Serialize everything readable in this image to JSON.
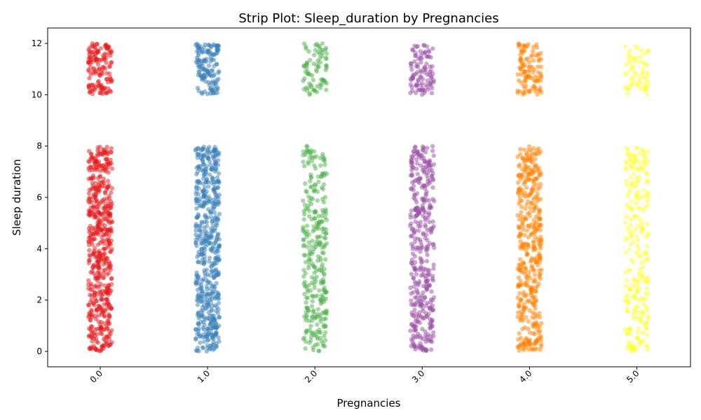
{
  "chart_data": {
    "type": "scatter",
    "subtype": "strip",
    "title": "Strip Plot: Sleep_duration by Pregnancies",
    "xlabel": "Pregnancies",
    "ylabel": "Sleep duration",
    "categories": [
      "0.0",
      "1.0",
      "2.0",
      "3.0",
      "4.0",
      "5.0"
    ],
    "ylim": [
      -0.6,
      12.6
    ],
    "yticks": [
      0,
      2,
      4,
      6,
      8,
      10,
      12
    ],
    "grid": false,
    "legend": "none",
    "point_alpha": 0.5,
    "series": [
      {
        "category": "0.0",
        "color": "#e41a1c",
        "density": 1.0,
        "ranges": [
          {
            "min": 0,
            "max": 8
          },
          {
            "min": 10,
            "max": 12
          }
        ]
      },
      {
        "category": "1.0",
        "color": "#377eb8",
        "density": 0.95,
        "ranges": [
          {
            "min": 0,
            "max": 8
          },
          {
            "min": 10,
            "max": 12
          }
        ]
      },
      {
        "category": "2.0",
        "color": "#4daf4a",
        "density": 0.55,
        "ranges": [
          {
            "min": 0,
            "max": 8
          },
          {
            "min": 10,
            "max": 12
          }
        ]
      },
      {
        "category": "3.0",
        "color": "#984ea3",
        "density": 0.7,
        "ranges": [
          {
            "min": 0,
            "max": 8
          },
          {
            "min": 10,
            "max": 12
          }
        ]
      },
      {
        "category": "4.0",
        "color": "#ff7f00",
        "density": 0.75,
        "ranges": [
          {
            "min": 0,
            "max": 8
          },
          {
            "min": 10,
            "max": 12
          }
        ]
      },
      {
        "category": "5.0",
        "color": "#ffff33",
        "density": 0.45,
        "ranges": [
          {
            "min": 0,
            "max": 8
          },
          {
            "min": 10,
            "max": 12
          }
        ]
      }
    ]
  }
}
